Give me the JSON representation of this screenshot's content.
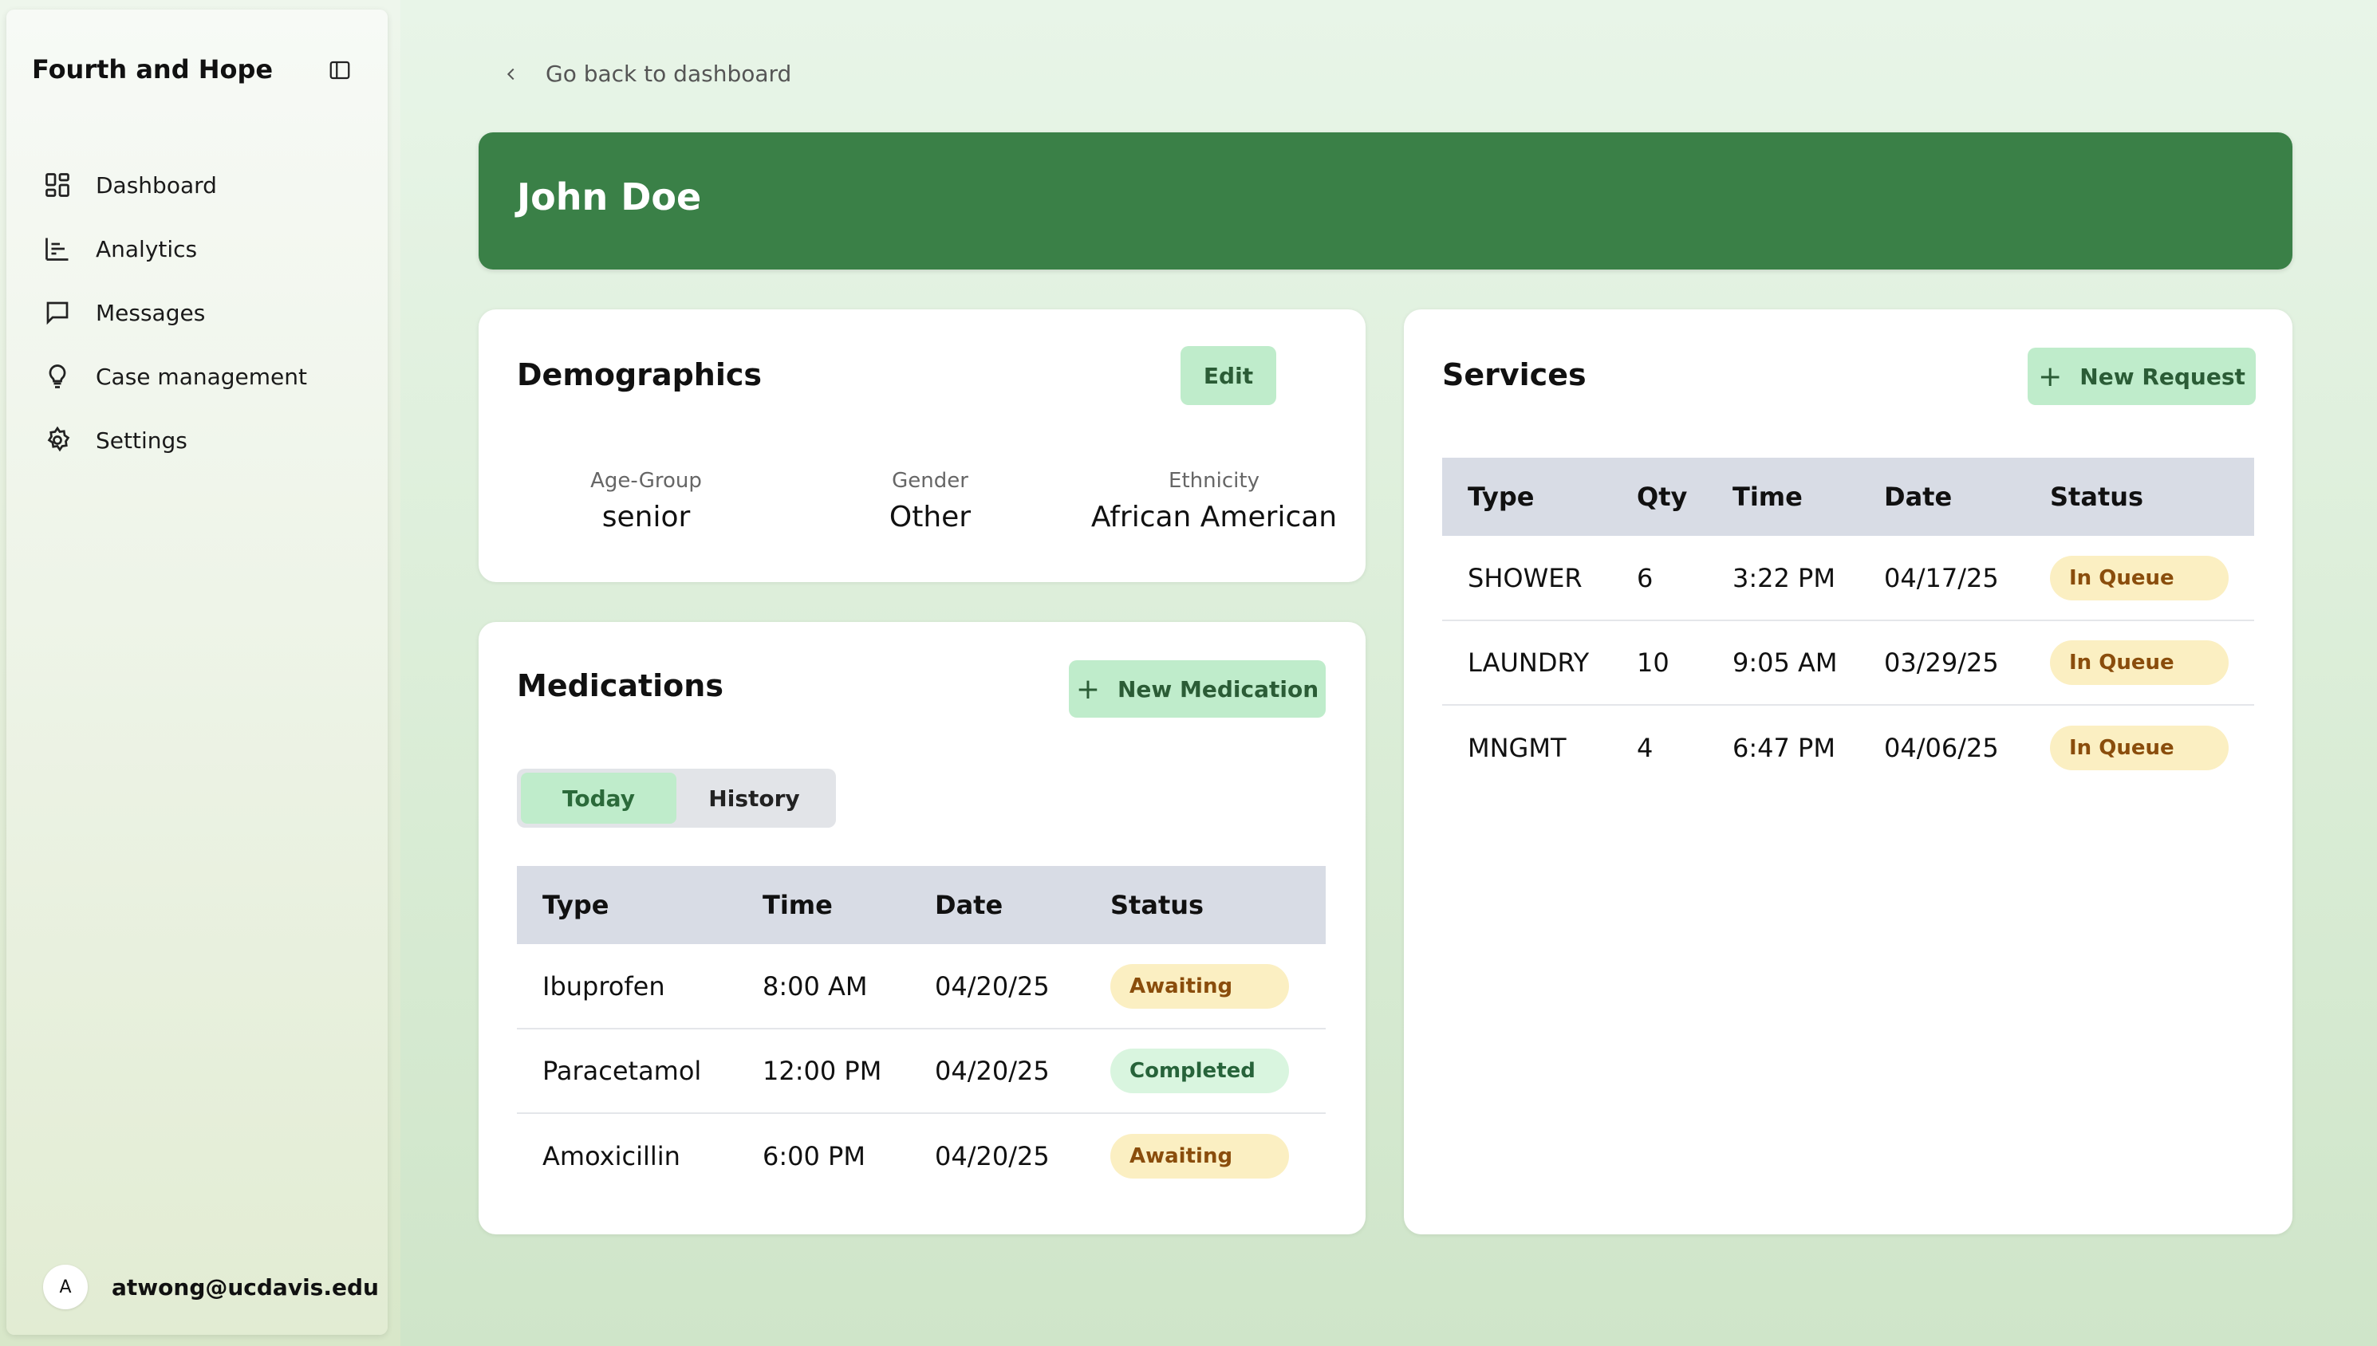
{
  "sidebar": {
    "brand": "Fourth and Hope",
    "items": [
      {
        "label": "Dashboard",
        "icon": "dashboard-icon"
      },
      {
        "label": "Analytics",
        "icon": "analytics-icon"
      },
      {
        "label": "Messages",
        "icon": "message-icon"
      },
      {
        "label": "Case management",
        "icon": "lightbulb-icon"
      },
      {
        "label": "Settings",
        "icon": "gear-icon"
      }
    ],
    "user": {
      "initial": "A",
      "email": "atwong@ucdavis.edu"
    }
  },
  "back_label": "Go back to dashboard",
  "client": {
    "name": "John Doe"
  },
  "demographics": {
    "title": "Demographics",
    "edit_label": "Edit",
    "fields": [
      {
        "label": "Age-Group",
        "value": "senior"
      },
      {
        "label": "Gender",
        "value": "Other"
      },
      {
        "label": "Ethnicity",
        "value": "African American"
      }
    ]
  },
  "medications": {
    "title": "Medications",
    "new_label": "New Medication",
    "tabs": [
      {
        "label": "Today",
        "active": true
      },
      {
        "label": "History",
        "active": false
      }
    ],
    "columns": [
      "Type",
      "Time",
      "Date",
      "Status"
    ],
    "rows": [
      {
        "type": "Ibuprofen",
        "time": "8:00 AM",
        "date": "04/20/25",
        "status": "Awaiting"
      },
      {
        "type": "Paracetamol",
        "time": "12:00 PM",
        "date": "04/20/25",
        "status": "Completed"
      },
      {
        "type": "Amoxicillin",
        "time": "6:00 PM",
        "date": "04/20/25",
        "status": "Awaiting"
      }
    ]
  },
  "services": {
    "title": "Services",
    "new_label": "New Request",
    "columns": [
      "Type",
      "Qty",
      "Time",
      "Date",
      "Status"
    ],
    "rows": [
      {
        "type": "SHOWER",
        "qty": "6",
        "time": "3:22 PM",
        "date": "04/17/25",
        "status": "In Queue"
      },
      {
        "type": "LAUNDRY",
        "qty": "10",
        "time": "9:05 AM",
        "date": "03/29/25",
        "status": "In Queue"
      },
      {
        "type": "MNGMT",
        "qty": "4",
        "time": "6:47 PM",
        "date": "04/06/25",
        "status": "In Queue"
      }
    ]
  },
  "colors": {
    "header_green": "#3a8047",
    "button_green": "#bfeccb",
    "awaiting": "#fbefc2",
    "completed": "#d9f5df"
  }
}
